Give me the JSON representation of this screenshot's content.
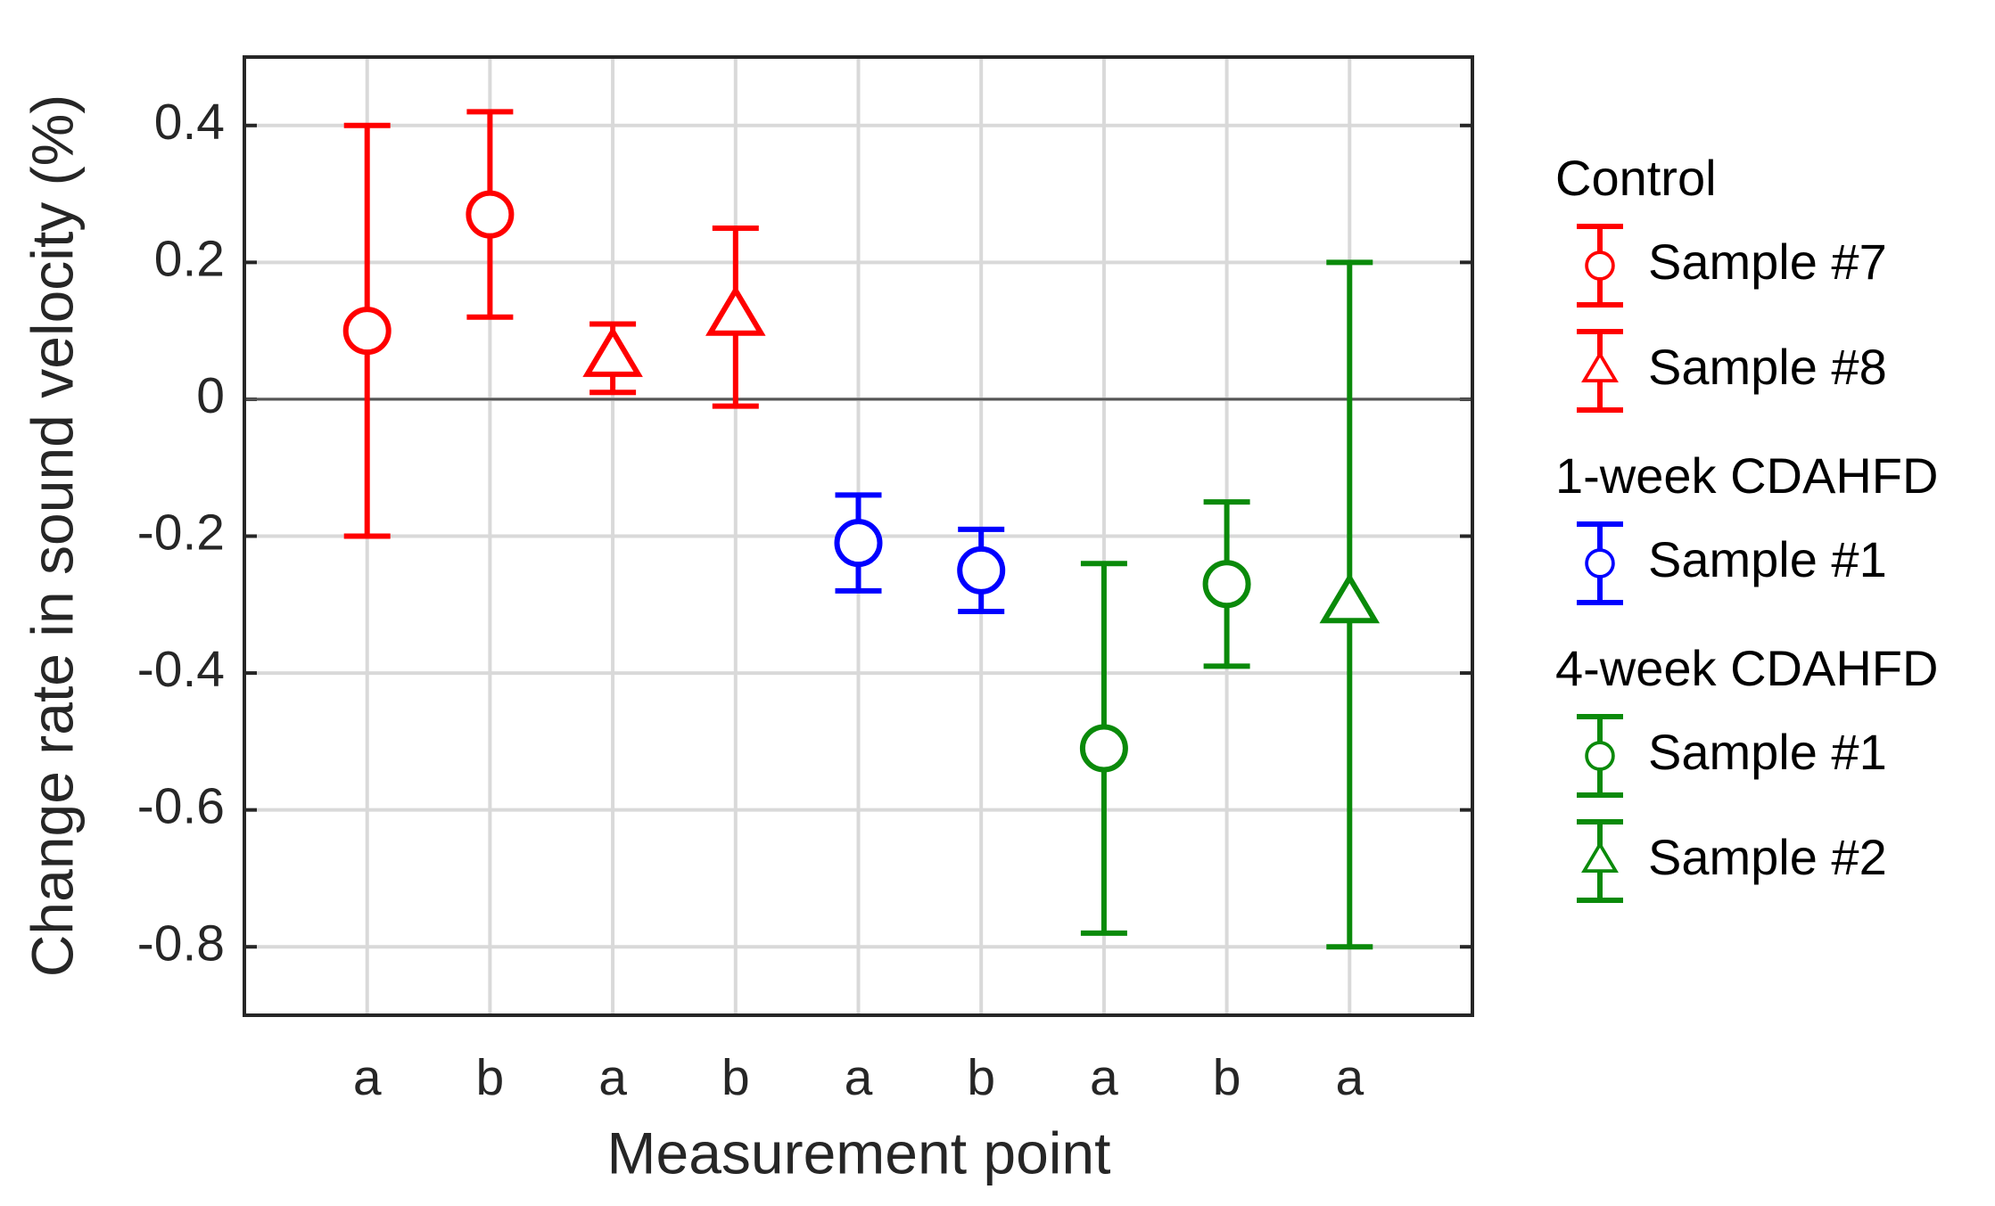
{
  "chart_data": {
    "type": "errorbar",
    "x_label": "Measurement point",
    "y_label": "Change rate in sound velocity (%)",
    "categories": [
      "a",
      "b",
      "a",
      "b",
      "a",
      "b",
      "a",
      "b",
      "a"
    ],
    "ylim": [
      -0.9,
      0.5
    ],
    "yticks": [
      -0.8,
      -0.6,
      -0.4,
      -0.2,
      0,
      0.2,
      0.4
    ],
    "grid": true,
    "zero_line": true,
    "groups": [
      {
        "name": "Control",
        "series": [
          {
            "name": "Sample #7",
            "color": "#ff0000",
            "marker": "circle",
            "values": [
              0.1,
              0.27,
              null,
              null,
              null,
              null,
              null,
              null,
              null
            ],
            "errors": [
              0.3,
              0.15,
              null,
              null,
              null,
              null,
              null,
              null,
              null
            ]
          },
          {
            "name": "Sample #8",
            "color": "#ff0000",
            "marker": "triangle",
            "values": [
              null,
              null,
              0.06,
              0.12,
              null,
              null,
              null,
              null,
              null
            ],
            "errors": [
              null,
              null,
              0.05,
              0.13,
              null,
              null,
              null,
              null,
              null
            ]
          }
        ]
      },
      {
        "name": "1-week CDAHFD",
        "series": [
          {
            "name": "Sample #1",
            "color": "#0000ff",
            "marker": "circle",
            "values": [
              null,
              null,
              null,
              null,
              -0.21,
              -0.25,
              null,
              null,
              null
            ],
            "errors": [
              null,
              null,
              null,
              null,
              0.07,
              0.06,
              null,
              null,
              null
            ]
          }
        ]
      },
      {
        "name": "4-week CDAHFD",
        "series": [
          {
            "name": "Sample #1",
            "color": "#0a8a0a",
            "marker": "circle",
            "values": [
              null,
              null,
              null,
              null,
              null,
              null,
              -0.51,
              -0.27,
              null
            ],
            "errors": [
              null,
              null,
              null,
              null,
              null,
              null,
              0.27,
              0.12,
              null
            ]
          },
          {
            "name": "Sample #2",
            "color": "#0a8a0a",
            "marker": "triangle",
            "values": [
              null,
              null,
              null,
              null,
              null,
              null,
              null,
              null,
              -0.3
            ],
            "errors": [
              null,
              null,
              null,
              null,
              null,
              null,
              null,
              null,
              0.5
            ]
          }
        ]
      }
    ]
  }
}
